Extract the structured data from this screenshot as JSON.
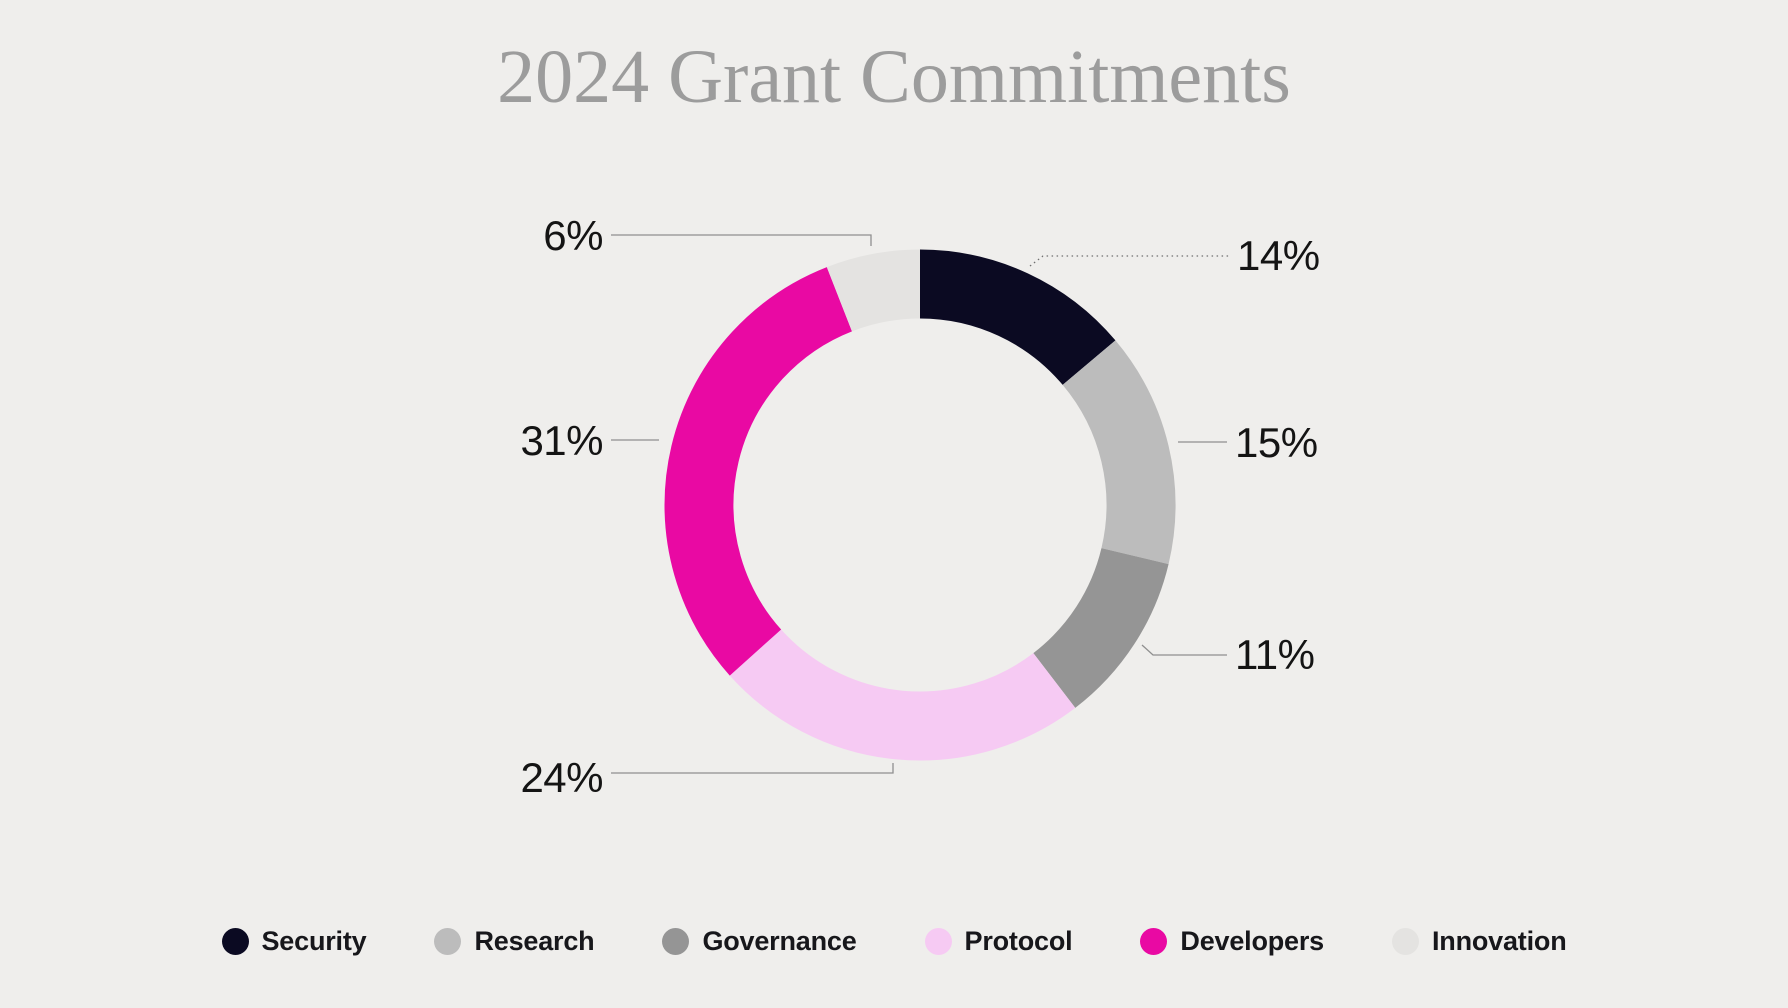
{
  "page": {
    "background_color": "#efeeec",
    "title": "2024 Grant Commitments",
    "title_color": "#9c9c9c",
    "label_color": "#141414"
  },
  "chart_data": {
    "type": "pie",
    "subtype": "donut",
    "title": "2024 Grant Commitments",
    "start_angle_deg": 0,
    "direction": "clockwise",
    "legend_position": "bottom",
    "total": 100,
    "segments": [
      {
        "label": "Security",
        "value": 14,
        "value_label": "14%",
        "color": "#0b0a22"
      },
      {
        "label": "Research",
        "value": 15,
        "value_label": "15%",
        "color": "#bcbcbc"
      },
      {
        "label": "Governance",
        "value": 11,
        "value_label": "11%",
        "color": "#959595"
      },
      {
        "label": "Protocol",
        "value": 24,
        "value_label": "24%",
        "color": "#f6caf3"
      },
      {
        "label": "Developers",
        "value": 31,
        "value_label": "31%",
        "color": "#e909a3"
      },
      {
        "label": "Innovation",
        "value": 6,
        "value_label": "6%",
        "color": "#e4e3e1"
      }
    ]
  }
}
